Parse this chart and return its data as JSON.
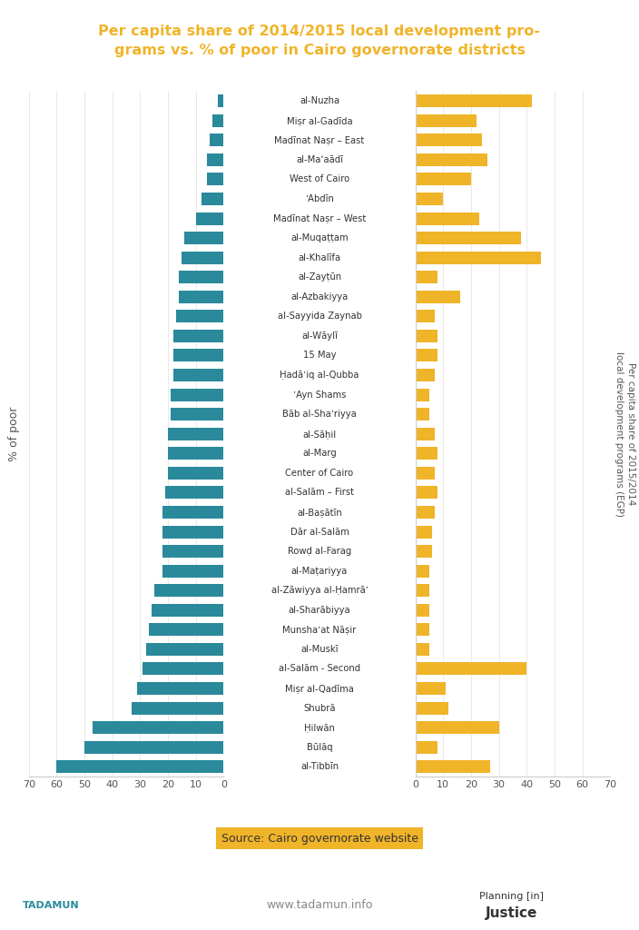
{
  "districts": [
    "al-Nuzha",
    "Miṣr al-Gadīda",
    "Madīnat Naṣr – East",
    "al-Maʻaādī",
    "West of Cairo",
    "ʼAbdīn",
    "Madīnat Naṣr – West",
    "al-Muqaṭṭam",
    "al-Khalīfa",
    "al-Zayṭūn",
    "al-Azbakiyya",
    "al-Sayyida Zaynab",
    "al-Wāylī",
    "15 May",
    "Ḥadāʼiq al-Qubba",
    "ʼAyn Shams",
    "Bāb al-Shaʼriyya",
    "al-Sāḥil",
    "al-Marg",
    "Center of Cairo",
    "al-Salām – First",
    "al-Baṣātīn",
    "Dār al-Salām",
    "Rowḍ al-Farag",
    "al-Maṭariyya",
    "al-Zāwiyya al-Ḥamrāʼ",
    "al-Sharābiyya",
    "Munshaʼat Nāṣir",
    "al-Muskī",
    "al-Salām - Second",
    "Miṣr al-Qadīma",
    "Shubrā",
    "Ḥilwān",
    "Būlāq",
    "al-Tibbīn"
  ],
  "poor_pct": [
    2,
    4,
    5,
    6,
    6,
    8,
    10,
    14,
    15,
    16,
    16,
    17,
    18,
    18,
    18,
    19,
    19,
    20,
    20,
    20,
    21,
    22,
    22,
    22,
    22,
    25,
    26,
    27,
    28,
    29,
    31,
    33,
    47,
    50,
    60
  ],
  "per_capita": [
    42,
    22,
    24,
    26,
    20,
    10,
    23,
    38,
    45,
    8,
    16,
    7,
    8,
    8,
    7,
    5,
    5,
    7,
    8,
    7,
    8,
    7,
    6,
    6,
    5,
    5,
    5,
    5,
    5,
    40,
    11,
    12,
    30,
    8,
    27
  ],
  "bar_color_poor": "#2a8a9b",
  "bar_color_per_capita": "#f0b429",
  "title_bg": "#2a8a9b",
  "title_color": "#f0b429",
  "source_text": "Source: Cairo governorate website",
  "source_bg": "#f0b429",
  "ylabel_left": "% of poor",
  "ylabel_right": "Per capita share of 2015/2014\nlocal development programs (EGP)",
  "xlim": 70,
  "background_color": "#ffffff",
  "website": "www.tadamun.info",
  "title_line1": "Per capita share of 2014/2015 local development pro-",
  "title_line2": "grams vs. % of poor in Cairo governorate districts"
}
